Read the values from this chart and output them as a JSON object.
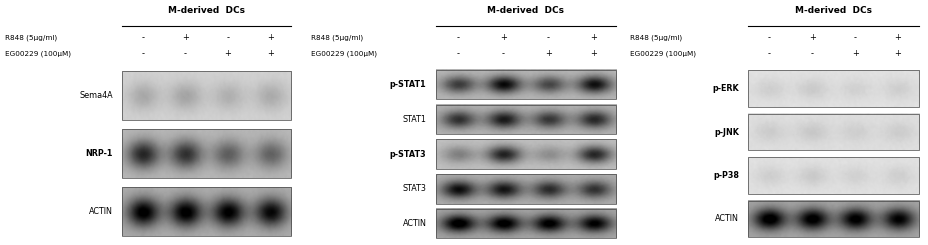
{
  "panels": [
    {
      "title": "M-derived  DCs",
      "r848_label": "R848 (5μg/ml)",
      "eg_label": "EG00229 (100μM)",
      "conditions": [
        "-",
        "+",
        "-",
        "+"
      ],
      "conditions2": [
        "-",
        "-",
        "+",
        "+"
      ],
      "bands": [
        {
          "label": "Sema4A",
          "bold": false,
          "intensities": [
            0.18,
            0.2,
            0.15,
            0.17
          ],
          "bg_gray": 0.82
        },
        {
          "label": "NRP-1",
          "bold": true,
          "intensities": [
            0.65,
            0.6,
            0.4,
            0.38
          ],
          "bg_gray": 0.72
        },
        {
          "label": "ACTIN",
          "bold": false,
          "intensities": [
            0.82,
            0.82,
            0.8,
            0.75
          ],
          "bg_gray": 0.68
        }
      ]
    },
    {
      "title": "M-derived  DCs",
      "r848_label": "R848 (5μg/ml)",
      "eg_label": "EG00229 (100μM)",
      "conditions": [
        "-",
        "+",
        "-",
        "+"
      ],
      "conditions2": [
        "-",
        "-",
        "+",
        "+"
      ],
      "bands": [
        {
          "label": "p-STAT1",
          "bold": true,
          "intensities": [
            0.55,
            0.78,
            0.5,
            0.75
          ],
          "bg_gray": 0.72
        },
        {
          "label": "STAT1",
          "bold": false,
          "intensities": [
            0.58,
            0.68,
            0.55,
            0.62
          ],
          "bg_gray": 0.7
        },
        {
          "label": "p-STAT3",
          "bold": true,
          "intensities": [
            0.28,
            0.7,
            0.22,
            0.68
          ],
          "bg_gray": 0.75
        },
        {
          "label": "STAT3",
          "bold": false,
          "intensities": [
            0.72,
            0.68,
            0.58,
            0.55
          ],
          "bg_gray": 0.68
        },
        {
          "label": "ACTIN",
          "bold": false,
          "intensities": [
            0.82,
            0.8,
            0.78,
            0.75
          ],
          "bg_gray": 0.65
        }
      ]
    },
    {
      "title": "M-derived  DCs",
      "r848_label": "R848 (5μg/ml)",
      "eg_label": "EG00229 (100μM)",
      "conditions": [
        "-",
        "+",
        "-",
        "+"
      ],
      "conditions2": [
        "-",
        "-",
        "+",
        "+"
      ],
      "bands": [
        {
          "label": "p-ERK",
          "bold": true,
          "intensities": [
            0.08,
            0.1,
            0.07,
            0.08
          ],
          "bg_gray": 0.88
        },
        {
          "label": "p-JNK",
          "bold": true,
          "intensities": [
            0.08,
            0.1,
            0.07,
            0.08
          ],
          "bg_gray": 0.87
        },
        {
          "label": "p-P38",
          "bold": true,
          "intensities": [
            0.08,
            0.1,
            0.07,
            0.08
          ],
          "bg_gray": 0.88
        },
        {
          "label": "ACTIN",
          "bold": false,
          "intensities": [
            0.82,
            0.8,
            0.78,
            0.75
          ],
          "bg_gray": 0.65
        }
      ]
    }
  ],
  "bg_color": "#ffffff"
}
